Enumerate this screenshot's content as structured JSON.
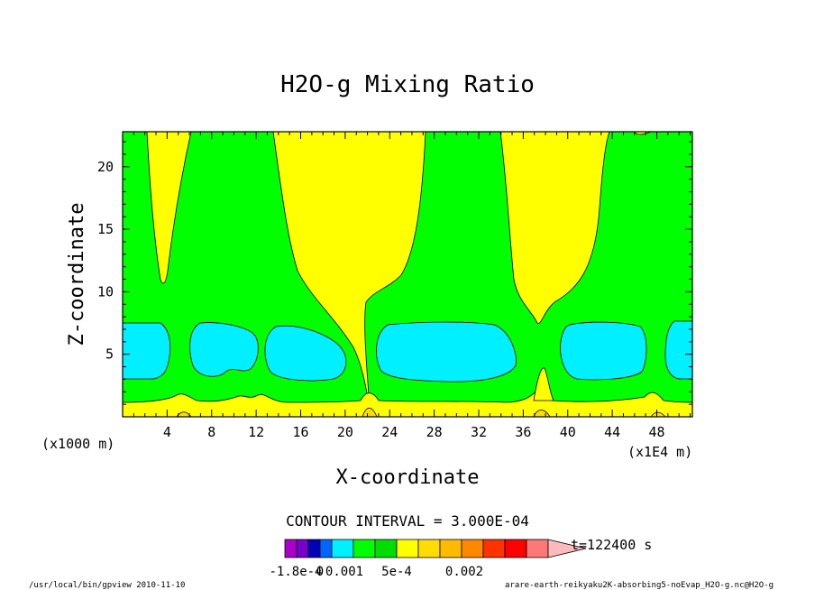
{
  "chart_data": {
    "type": "contour",
    "title": "H2O-g Mixing Ratio",
    "xlabel": "X-coordinate",
    "ylabel": "Z-coordinate",
    "x_unit_label": "(x1E4 m)",
    "y_unit_label": "(x1000 m)",
    "xlim": [
      0,
      51.2
    ],
    "ylim": [
      0,
      22.8
    ],
    "x_ticks": [
      4,
      8,
      12,
      16,
      20,
      24,
      28,
      32,
      36,
      40,
      44,
      48
    ],
    "y_ticks": [
      5,
      10,
      15,
      20
    ],
    "contour_interval_text": "CONTOUR INTERVAL = 3.000E-04",
    "time_text": "t=122400 s",
    "colorbar": {
      "labels": [
        "-1.8e-4",
        "0",
        "0.001",
        "5e-4",
        "0.002"
      ],
      "colors": [
        "#aa00cc",
        "#7700cc",
        "#0000bb",
        "#0066ff",
        "#00f0ff",
        "#00ff00",
        "#00dd00",
        "#ffff00",
        "#ffdd00",
        "#ffbb00",
        "#ff8800",
        "#ff3300",
        "#ff0000",
        "#ff7777",
        "#ffbbbb"
      ],
      "levels": [
        "<-1.8e-4",
        "-1.8e-4",
        "-1.2e-4",
        "-6e-5",
        "0",
        "3e-4",
        "6e-4",
        "9e-4",
        "0.0012",
        "0.0015",
        "0.0018",
        "0.0021",
        "0.0024",
        "0.0027",
        ">0.003"
      ]
    },
    "field_colors": {
      "low": "#00f0ff",
      "mid": "#00ff00",
      "high": "#ffff00",
      "peak": "#ffdd00"
    },
    "regions": {
      "low_blobs_z": [
        3.2,
        7.6
      ],
      "surface_layer_top_z": 1.3,
      "yellow_columns_x": [
        [
          3,
          6
        ],
        [
          15,
          25
        ],
        [
          34,
          42
        ],
        [
          0,
          0
        ]
      ]
    }
  },
  "footer": {
    "left": "/usr/local/bin/gpview  2010-11-10",
    "right": "arare-earth-reikyaku2K-absorbing5-noEvap_H2O-g.nc@H2O-g"
  }
}
